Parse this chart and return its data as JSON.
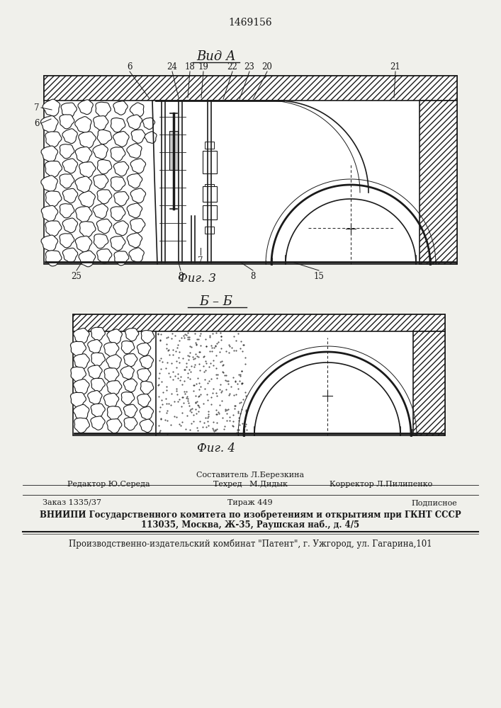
{
  "patent_number": "1469156",
  "bg_color": "#f0f0eb",
  "line_color": "#1a1a1a",
  "fig3_title": "Вид А",
  "fig3_caption": "Фиг. 3",
  "fig4_title": "Б – Б",
  "fig4_caption": "Фиг. 4",
  "footer_line1_center": "Составитель Л.Березкина",
  "footer_line2_left": "Редактор Ю.Середа",
  "footer_line2_center": "Техред   М.Дидык",
  "footer_line2_right": "Корректор Л.Пилипенко",
  "footer_line3_left": "Заказ 1335/37",
  "footer_line3_center": "Тираж 449",
  "footer_line3_right": "Подписное",
  "footer_line4": "ВНИИПИ Государственного комитета по изобретениям и открытиям при ГКНТ СССР",
  "footer_line5": "113035, Москва, Ж-35, Раушская наб., д. 4/5",
  "footer_line6": "Производственно-издательский комбинат \"Патент\", г. Ужгород, ул. Гагарина,101"
}
